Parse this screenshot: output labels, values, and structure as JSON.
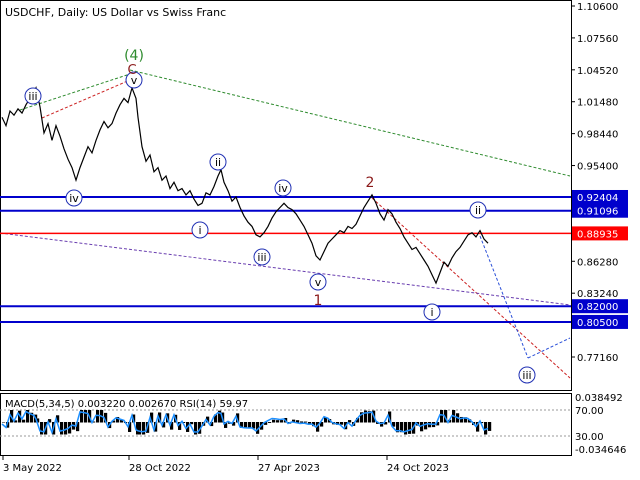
{
  "header": {
    "symbol_line": "USDCHF, Daily:  US Dollar vs Swiss Franc"
  },
  "indicator": {
    "label": "MACD(5,34,5) 0.003220 0.002670 RSI(14) 59.97",
    "macd_colors": {
      "histogram": "#000000",
      "signal": "#1e90ff"
    },
    "right_axis": {
      "top": "0.038492",
      "level_70": "70.00",
      "level_30": "30.00",
      "bottom": "-0.034646"
    }
  },
  "chart_data": {
    "type": "line",
    "price_axis_ticks": [
      "1.10600",
      "1.07560",
      "1.04520",
      "1.01480",
      "0.98440",
      "0.95400",
      "0.86280",
      "0.83240",
      "0.77160"
    ],
    "time_axis_labels": [
      "3 May 2022",
      "28 Oct 2022",
      "27 Apr 2023",
      "24 Oct 2023"
    ],
    "horizontal_levels": [
      {
        "label": "0.92404",
        "color": "#0000cc"
      },
      {
        "label": "0.91096",
        "color": "#0000cc"
      },
      {
        "label": "0.88935",
        "color": "#ff0000"
      },
      {
        "label": "0.82000",
        "color": "#0000cc"
      },
      {
        "label": "0.80500",
        "color": "#0000cc"
      }
    ],
    "wave_labels": {
      "circled": [
        "iii",
        "iv",
        "v",
        "ii",
        "i",
        "iii",
        "iv",
        "v",
        "ii",
        "i",
        "iii"
      ],
      "primary": [
        "(4)"
      ],
      "intermediate": [
        "C",
        "2",
        "1"
      ]
    },
    "colors": {
      "price": "#000000",
      "levels_blue": "#0000cc",
      "level_red": "#ff0000",
      "wave_green": "#2e8b2e",
      "wave_dark_red": "#8b1a1a",
      "circle_label": "#1f2fb3"
    },
    "price_path": [
      [
        0,
        1.0
      ],
      [
        4,
        0.992
      ],
      [
        8,
        1.006
      ],
      [
        12,
        1.002
      ],
      [
        16,
        1.008
      ],
      [
        20,
        1.004
      ],
      [
        24,
        1.012
      ],
      [
        28,
        1.018
      ],
      [
        32,
        1.024
      ],
      [
        34,
        1.028
      ],
      [
        38,
        1.01
      ],
      [
        42,
        0.985
      ],
      [
        46,
        0.994
      ],
      [
        50,
        0.978
      ],
      [
        54,
        0.992
      ],
      [
        58,
        0.982
      ],
      [
        62,
        0.97
      ],
      [
        66,
        0.96
      ],
      [
        70,
        0.952
      ],
      [
        74,
        0.94
      ],
      [
        78,
        0.952
      ],
      [
        82,
        0.962
      ],
      [
        86,
        0.972
      ],
      [
        90,
        0.966
      ],
      [
        94,
        0.978
      ],
      [
        98,
        0.988
      ],
      [
        102,
        0.996
      ],
      [
        106,
        0.99
      ],
      [
        110,
        0.994
      ],
      [
        114,
        1.004
      ],
      [
        118,
        1.012
      ],
      [
        122,
        1.018
      ],
      [
        126,
        1.014
      ],
      [
        130,
        1.028
      ],
      [
        134,
        1.018
      ],
      [
        136,
        1.0
      ],
      [
        140,
        0.972
      ],
      [
        144,
        0.958
      ],
      [
        148,
        0.964
      ],
      [
        152,
        0.948
      ],
      [
        156,
        0.952
      ],
      [
        160,
        0.94
      ],
      [
        164,
        0.944
      ],
      [
        168,
        0.932
      ],
      [
        172,
        0.938
      ],
      [
        176,
        0.93
      ],
      [
        180,
        0.932
      ],
      [
        184,
        0.926
      ],
      [
        188,
        0.93
      ],
      [
        192,
        0.922
      ],
      [
        196,
        0.916
      ],
      [
        200,
        0.918
      ],
      [
        204,
        0.928
      ],
      [
        208,
        0.926
      ],
      [
        212,
        0.934
      ],
      [
        216,
        0.944
      ],
      [
        219,
        0.95
      ],
      [
        222,
        0.938
      ],
      [
        226,
        0.93
      ],
      [
        230,
        0.92
      ],
      [
        234,
        0.924
      ],
      [
        238,
        0.914
      ],
      [
        242,
        0.906
      ],
      [
        246,
        0.9
      ],
      [
        250,
        0.896
      ],
      [
        254,
        0.888
      ],
      [
        258,
        0.886
      ],
      [
        262,
        0.89
      ],
      [
        266,
        0.896
      ],
      [
        270,
        0.904
      ],
      [
        274,
        0.91
      ],
      [
        278,
        0.914
      ],
      [
        282,
        0.918
      ],
      [
        286,
        0.914
      ],
      [
        290,
        0.912
      ],
      [
        294,
        0.908
      ],
      [
        298,
        0.902
      ],
      [
        302,
        0.896
      ],
      [
        306,
        0.888
      ],
      [
        310,
        0.88
      ],
      [
        314,
        0.868
      ],
      [
        318,
        0.864
      ],
      [
        322,
        0.872
      ],
      [
        326,
        0.88
      ],
      [
        330,
        0.884
      ],
      [
        334,
        0.888
      ],
      [
        338,
        0.892
      ],
      [
        342,
        0.89
      ],
      [
        346,
        0.896
      ],
      [
        350,
        0.894
      ],
      [
        354,
        0.898
      ],
      [
        358,
        0.906
      ],
      [
        362,
        0.914
      ],
      [
        366,
        0.92
      ],
      [
        370,
        0.926
      ],
      [
        374,
        0.918
      ],
      [
        378,
        0.908
      ],
      [
        382,
        0.902
      ],
      [
        386,
        0.912
      ],
      [
        390,
        0.908
      ],
      [
        394,
        0.9
      ],
      [
        398,
        0.894
      ],
      [
        402,
        0.886
      ],
      [
        406,
        0.88
      ],
      [
        410,
        0.874
      ],
      [
        414,
        0.876
      ],
      [
        418,
        0.87
      ],
      [
        422,
        0.864
      ],
      [
        426,
        0.858
      ],
      [
        430,
        0.85
      ],
      [
        434,
        0.842
      ],
      [
        438,
        0.852
      ],
      [
        442,
        0.862
      ],
      [
        446,
        0.858
      ],
      [
        450,
        0.866
      ],
      [
        454,
        0.872
      ],
      [
        458,
        0.876
      ],
      [
        462,
        0.882
      ],
      [
        466,
        0.888
      ],
      [
        470,
        0.89
      ],
      [
        474,
        0.886
      ],
      [
        478,
        0.892
      ],
      [
        482,
        0.884
      ],
      [
        486,
        0.88
      ]
    ]
  }
}
